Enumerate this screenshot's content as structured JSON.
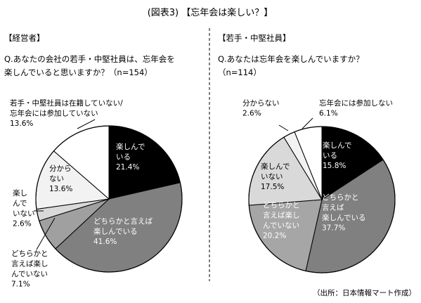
{
  "page": {
    "title": "(図表3) 【忘年会は楽しい？】",
    "source": "（出所：日本情報マート作成）"
  },
  "panels": [
    {
      "group_label": "【経営者】",
      "question_lines": [
        "Q.あなたの会社の若手・中堅社員は、忘年会を",
        "楽しんでいると思いますか？（n=154）"
      ]
    },
    {
      "group_label": "【若手・中堅社員】",
      "question_lines": [
        "Q.あなたは忘年会を楽しんでいますか？",
        "（n=114）"
      ]
    }
  ],
  "chart_data": [
    {
      "type": "pie",
      "title": "",
      "n": 154,
      "slices": [
        {
          "label_lines": [
            "楽しんで",
            "いる"
          ],
          "value": 21.4,
          "value_text": "21.4%",
          "color": "#000000",
          "text_color": "#ffffff"
        },
        {
          "label_lines": [
            "どちらかと言えば",
            "楽しんでいる"
          ],
          "value": 41.6,
          "value_text": "41.6%",
          "color": "#808080",
          "text_color": "#ffffff"
        },
        {
          "label_lines": [
            "どちらかと",
            "言えば楽し",
            "んでいない"
          ],
          "value": 7.1,
          "value_text": "7.1%",
          "color": "#a0a0a0",
          "text_color": "#000000"
        },
        {
          "label_lines": [
            "楽し",
            "んで",
            "いない"
          ],
          "value": 2.6,
          "value_text": "2.6%",
          "color": "#d9d9d9",
          "text_color": "#000000"
        },
        {
          "label_lines": [
            "分から",
            "ない"
          ],
          "value": 13.6,
          "value_text": "13.6%",
          "color": "#f2f2f2",
          "text_color": "#000000"
        },
        {
          "label_lines": [
            "若手・中堅社員は在籍していない/",
            "忘年会には参加していない"
          ],
          "value": 13.6,
          "value_text": "13.6%",
          "color": "#ffffff",
          "text_color": "#000000"
        }
      ]
    },
    {
      "type": "pie",
      "title": "",
      "n": 114,
      "slices": [
        {
          "label_lines": [
            "楽しんで",
            "いる"
          ],
          "value": 15.8,
          "value_text": "15.8%",
          "color": "#000000",
          "text_color": "#ffffff"
        },
        {
          "label_lines": [
            "どちらかと",
            "言えば",
            "楽しんでいる"
          ],
          "value": 37.7,
          "value_text": "37.7%",
          "color": "#808080",
          "text_color": "#ffffff"
        },
        {
          "label_lines": [
            "どちらかと",
            "言えば楽し",
            "んでいない"
          ],
          "value": 20.2,
          "value_text": "20.2%",
          "color": "#a6a6a6",
          "text_color": "#ffffff"
        },
        {
          "label_lines": [
            "楽しんで",
            "いない"
          ],
          "value": 17.5,
          "value_text": "17.5%",
          "color": "#d9d9d9",
          "text_color": "#000000"
        },
        {
          "label_lines": [
            "分からない"
          ],
          "value": 2.6,
          "value_text": "2.6%",
          "color": "#f2f2f2",
          "text_color": "#000000"
        },
        {
          "label_lines": [
            "忘年会には参加しない"
          ],
          "value": 6.1,
          "value_text": "6.1%",
          "color": "#ffffff",
          "text_color": "#000000"
        }
      ]
    }
  ]
}
